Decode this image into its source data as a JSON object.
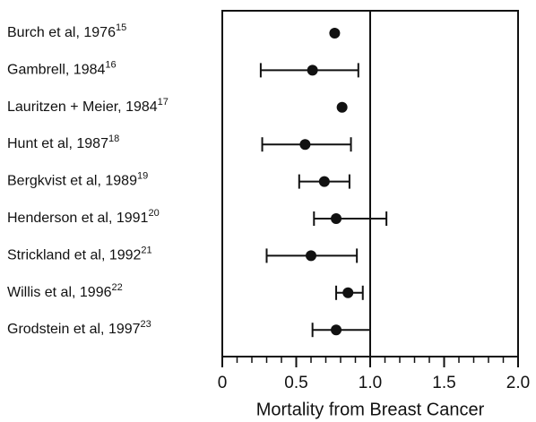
{
  "chart_data": {
    "type": "forest",
    "x_label": "Mortality from Breast Cancer",
    "categories": [
      "Burch et al, 1976",
      "Gambrell, 1984",
      "Lauritzen + Meier, 1984",
      "Hunt et al, 1987",
      "Bergkvist et al, 1989",
      "Henderson et al, 1991",
      "Strickland et al, 1992",
      "Willis et al, 1996",
      "Grodstein et al, 1997"
    ],
    "references": [
      "15",
      "16",
      "17",
      "18",
      "19",
      "20",
      "21",
      "22",
      "23"
    ],
    "values": [
      0.76,
      0.61,
      0.81,
      0.56,
      0.69,
      0.77,
      0.6,
      0.85,
      0.77
    ],
    "lower": [
      null,
      0.26,
      null,
      0.27,
      0.52,
      0.62,
      0.3,
      0.77,
      0.61
    ],
    "upper": [
      null,
      0.92,
      null,
      0.87,
      0.86,
      1.11,
      0.91,
      0.95,
      1.0
    ],
    "xlim": [
      0,
      2.0
    ],
    "xticks": [
      0,
      0.5,
      {
        "value": 1.0,
        "label": "1.0"
      },
      1.5,
      {
        "value": 2.0,
        "label": "2.0"
      }
    ],
    "minor_xticks": [
      0.1,
      0.2,
      0.3,
      0.4,
      0.6,
      0.7,
      0.8,
      0.9,
      1.1,
      1.2,
      1.3,
      1.4,
      1.6,
      1.7,
      1.8,
      1.9
    ],
    "reference_line": 1.0,
    "color": "#111111"
  }
}
